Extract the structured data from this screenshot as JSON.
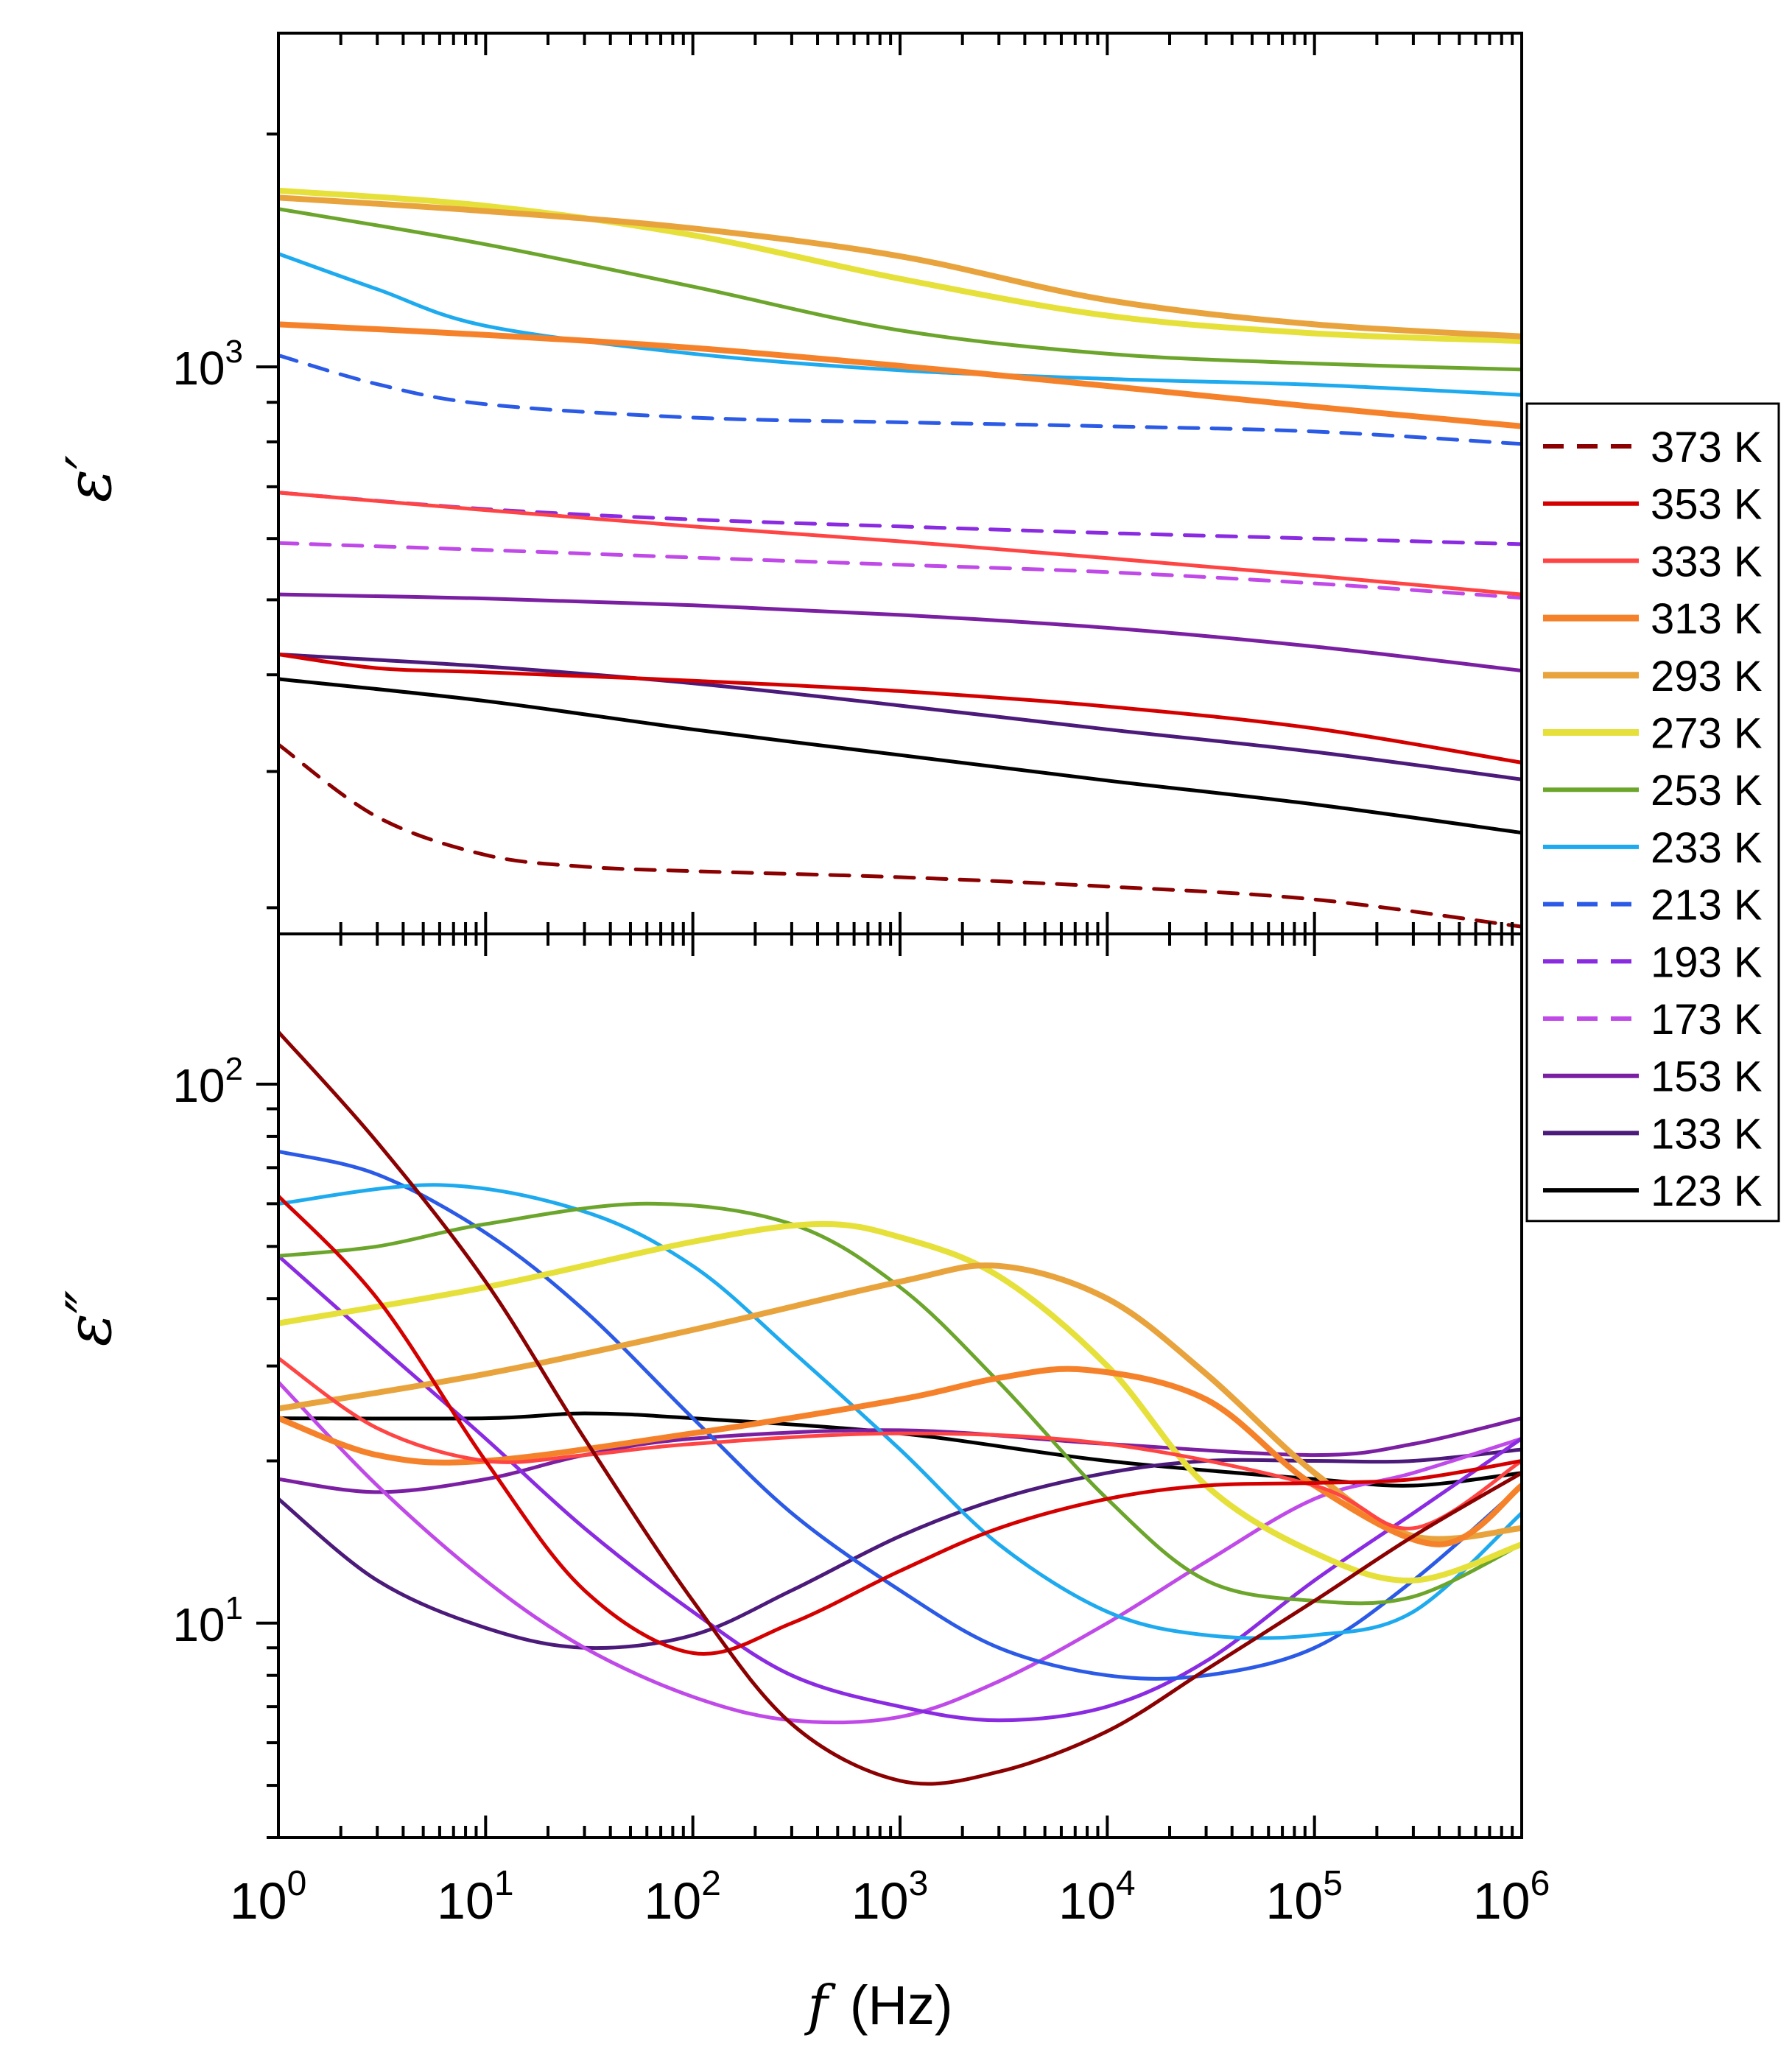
{
  "chart_data": {
    "type": "line",
    "xlabel": {
      "symbol": "f",
      "unit": "(Hz)"
    },
    "x_scale": "log",
    "xlim": [
      1,
      1000000
    ],
    "x_ticks": [
      {
        "base": "10",
        "exp": "0"
      },
      {
        "base": "10",
        "exp": "1"
      },
      {
        "base": "10",
        "exp": "2"
      },
      {
        "base": "10",
        "exp": "3"
      },
      {
        "base": "10",
        "exp": "4"
      },
      {
        "base": "10",
        "exp": "5"
      },
      {
        "base": "10",
        "exp": "6"
      }
    ],
    "panels": [
      {
        "id": "top",
        "ylabel": "ε′",
        "y_scale": "log",
        "ylim": [
          185,
          2700
        ],
        "y_tick_labels": [
          {
            "value": 1000,
            "base": "10",
            "exp": "3"
          }
        ],
        "series": [
          {
            "name": "373 K",
            "color": "#8B0000",
            "dash": true,
            "x": [
              1,
              3,
              10,
              30,
              100,
              1000,
              10000,
              100000,
              1000000
            ],
            "y": [
              325,
              262,
              234,
              226,
              223,
              219,
              213,
              205,
              189
            ]
          },
          {
            "name": "353 K",
            "color": "#D40000",
            "dash": false,
            "x": [
              1,
              3,
              10,
              100,
              1000,
              10000,
              100000,
              1000000
            ],
            "y": [
              425,
              408,
              403,
              393,
              381,
              364,
              341,
              308
            ]
          },
          {
            "name": "333 K",
            "color": "#FF4444",
            "dash": false,
            "x": [
              1,
              10,
              100,
              1000,
              10000,
              100000,
              1000000
            ],
            "y": [
              688,
              653,
              622,
              595,
              566,
              537,
              508
            ]
          },
          {
            "name": "313 K",
            "color": "#F5822A",
            "dash": false,
            "x": [
              1,
              10,
              100,
              1000,
              10000,
              100000,
              1000000
            ],
            "y": [
              1135,
              1100,
              1058,
              1003,
              945,
              888,
              838
            ]
          },
          {
            "name": "293 K",
            "color": "#E8A33D",
            "dash": false,
            "x": [
              1,
              10,
              100,
              1000,
              10000,
              100000,
              1000000
            ],
            "y": [
              1655,
              1590,
              1510,
              1390,
              1220,
              1135,
              1095
            ]
          },
          {
            "name": "273 K",
            "color": "#E6E03A",
            "dash": false,
            "x": [
              1,
              10,
              100,
              1000,
              10000,
              100000,
              1000000
            ],
            "y": [
              1690,
              1615,
              1480,
              1300,
              1165,
              1105,
              1080
            ]
          },
          {
            "name": "253 K",
            "color": "#6BA52B",
            "dash": false,
            "x": [
              1,
              10,
              100,
              1000,
              10000,
              100000,
              1000000
            ],
            "y": [
              1600,
              1440,
              1270,
              1115,
              1040,
              1010,
              992
            ]
          },
          {
            "name": "233 K",
            "color": "#1EAAEE",
            "dash": false,
            "x": [
              1,
              3,
              10,
              100,
              1000,
              10000,
              100000,
              1000000
            ],
            "y": [
              1400,
              1260,
              1130,
              1040,
              990,
              965,
              948,
              920
            ]
          },
          {
            "name": "213 K",
            "color": "#2B5AE6",
            "dash": true,
            "x": [
              1,
              3,
              10,
              100,
              1000,
              10000,
              100000,
              1000000
            ],
            "y": [
              1035,
              950,
              895,
              860,
              848,
              838,
              825,
              795
            ]
          },
          {
            "name": "193 K",
            "color": "#8A2BE2",
            "dash": true,
            "x": [
              1,
              10,
              100,
              1000,
              10000,
              100000,
              1000000
            ],
            "y": [
              688,
              655,
              635,
              622,
              610,
              600,
              590
            ]
          },
          {
            "name": "173 K",
            "color": "#C04AE8",
            "dash": true,
            "x": [
              1,
              10,
              100,
              1000,
              10000,
              100000,
              1000000
            ],
            "y": [
              592,
              580,
              567,
              555,
              543,
              525,
              503
            ]
          },
          {
            "name": "153 K",
            "color": "#7B1FA2",
            "dash": false,
            "x": [
              1,
              10,
              100,
              1000,
              10000,
              100000,
              1000000
            ],
            "y": [
              508,
              502,
              492,
              478,
              460,
              435,
              405
            ]
          },
          {
            "name": "133 K",
            "color": "#4B1A7A",
            "dash": false,
            "x": [
              1,
              10,
              100,
              1000,
              10000,
              100000,
              1000000
            ],
            "y": [
              425,
              410,
              390,
              365,
              340,
              318,
              293
            ]
          },
          {
            "name": "123 K",
            "color": "#000000",
            "dash": false,
            "x": [
              1,
              10,
              100,
              1000,
              10000,
              100000,
              1000000
            ],
            "y": [
              395,
              370,
              340,
              315,
              292,
              272,
              250
            ]
          }
        ]
      },
      {
        "id": "bottom",
        "ylabel": "ε″",
        "y_scale": "log",
        "ylim": [
          4.0,
          190
        ],
        "y_tick_labels": [
          {
            "value": 100,
            "base": "10",
            "exp": "2"
          },
          {
            "value": 10,
            "base": "10",
            "exp": "1"
          }
        ],
        "series": [
          {
            "name": "373 K",
            "color": "#8B0000",
            "dash": false,
            "x": [
              1,
              3,
              10,
              30,
              100,
              300,
              1000,
              3000,
              10000,
              30000,
              100000,
              300000,
              1000000
            ],
            "y": [
              125,
              78,
              43,
              22,
              11,
              6.5,
              5.1,
              5.3,
              6.3,
              8.2,
              11,
              14.5,
              19
            ]
          },
          {
            "name": "353 K",
            "color": "#D40000",
            "dash": false,
            "x": [
              1,
              3,
              10,
              30,
              100,
              300,
              1000,
              3000,
              10000,
              30000,
              100000,
              300000,
              1000000
            ],
            "y": [
              62,
              40,
              20,
              11.5,
              8.8,
              10,
              12.5,
              15,
              17,
              18,
              18.2,
              18.5,
              20
            ]
          },
          {
            "name": "333 K",
            "color": "#FF4444",
            "dash": false,
            "x": [
              1,
              3,
              10,
              30,
              100,
              1000,
              10000,
              100000,
              300000,
              1000000
            ],
            "y": [
              31,
              23,
              20,
              20.5,
              21.5,
              22.5,
              21.5,
              18,
              15,
              20
            ]
          },
          {
            "name": "313 K",
            "color": "#F5822A",
            "dash": false,
            "x": [
              1,
              3,
              10,
              100,
              1000,
              3000,
              8000,
              30000,
              100000,
              400000,
              1000000
            ],
            "y": [
              24,
              20.5,
              20,
              22.5,
              26,
              28.5,
              29.5,
              26,
              18,
              14,
              18
            ]
          },
          {
            "name": "293 K",
            "color": "#E8A33D",
            "dash": false,
            "x": [
              1,
              10,
              100,
              1000,
              3000,
              10000,
              30000,
              100000,
              300000,
              1000000
            ],
            "y": [
              25,
              29,
              35,
              43,
              46,
              40,
              29,
              19,
              14.5,
              15
            ]
          },
          {
            "name": "273 K",
            "color": "#E6E03A",
            "dash": false,
            "x": [
              1,
              10,
              100,
              400,
              1000,
              3000,
              10000,
              30000,
              100000,
              300000,
              1000000
            ],
            "y": [
              36,
              42,
              51,
              55,
              52,
              44,
              30,
              18,
              13.5,
              12,
              14
            ]
          },
          {
            "name": "253 K",
            "color": "#6BA52B",
            "dash": false,
            "x": [
              1,
              3,
              10,
              60,
              300,
              1000,
              3000,
              10000,
              30000,
              100000,
              300000,
              1000000
            ],
            "y": [
              48,
              50,
              55,
              60,
              55,
              42,
              28,
              17,
              12,
              11,
              11.2,
              14
            ]
          },
          {
            "name": "233 K",
            "color": "#1EAAEE",
            "dash": false,
            "x": [
              1,
              6,
              30,
              100,
              300,
              1000,
              3000,
              10000,
              30000,
              100000,
              300000,
              1000000
            ],
            "y": [
              60,
              65,
              58,
              46,
              32,
              21,
              14,
              10.5,
              9.5,
              9.5,
              10.5,
              16
            ]
          },
          {
            "name": "213 K",
            "color": "#2B5AE6",
            "dash": false,
            "x": [
              1,
              3,
              10,
              30,
              100,
              300,
              1000,
              3000,
              10000,
              30000,
              100000,
              300000,
              1000000
            ],
            "y": [
              75,
              68,
              53,
              38,
              24,
              16,
              11.5,
              9,
              8,
              8,
              9,
              12,
              18
            ]
          },
          {
            "name": "193 K",
            "color": "#8A2BE2",
            "dash": false,
            "x": [
              1,
              3,
              10,
              30,
              100,
              300,
              1000,
              3000,
              10000,
              30000,
              100000,
              300000,
              1000000
            ],
            "y": [
              48,
              33,
              22,
              15,
              10.5,
              8,
              7,
              6.6,
              7,
              8.5,
              12,
              16,
              22
            ]
          },
          {
            "name": "173 K",
            "color": "#C04AE8",
            "dash": false,
            "x": [
              1,
              3,
              10,
              30,
              100,
              300,
              1000,
              3000,
              10000,
              30000,
              100000,
              300000,
              1000000
            ],
            "y": [
              28,
              18,
              12,
              9,
              7.3,
              6.6,
              6.7,
              7.8,
              10,
              13,
              17,
              19,
              22
            ]
          },
          {
            "name": "153 K",
            "color": "#7B1FA2",
            "dash": false,
            "x": [
              1,
              3,
              10,
              30,
              100,
              1000,
              10000,
              100000,
              300000,
              1000000
            ],
            "y": [
              18.5,
              17.5,
              18.5,
              20.5,
              22,
              22.8,
              21.5,
              20.5,
              21.5,
              24
            ]
          },
          {
            "name": "133 K",
            "color": "#4B1A7A",
            "dash": false,
            "x": [
              1,
              3,
              10,
              30,
              100,
              300,
              1000,
              3000,
              10000,
              30000,
              100000,
              300000,
              1000000
            ],
            "y": [
              17,
              12,
              9.8,
              9,
              9.5,
              11.5,
              14.5,
              17,
              19,
              20,
              20,
              20,
              21
            ]
          },
          {
            "name": "123 K",
            "color": "#000000",
            "dash": false,
            "x": [
              1,
              10,
              30,
              100,
              1000,
              10000,
              100000,
              300000,
              1000000
            ],
            "y": [
              24,
              24,
              24.5,
              24,
              22.5,
              20,
              18.5,
              18,
              19
            ]
          }
        ]
      }
    ],
    "legend": {
      "position": "right",
      "entries": [
        "373 K",
        "353 K",
        "333 K",
        "313 K",
        "293 K",
        "273 K",
        "253 K",
        "233 K",
        "213 K",
        "193 K",
        "173 K",
        "153 K",
        "133 K",
        "123 K"
      ]
    }
  }
}
